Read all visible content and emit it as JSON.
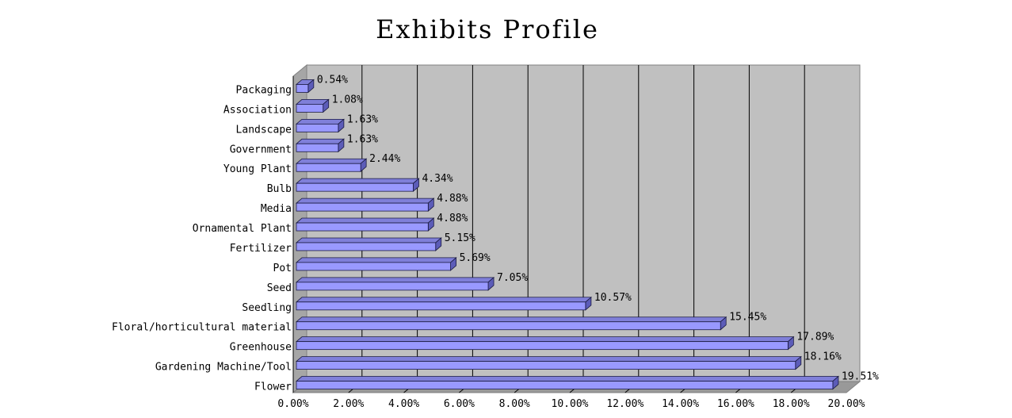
{
  "chart_data": {
    "type": "bar",
    "orientation": "horizontal",
    "title": "Exhibits Profile",
    "xlabel": "",
    "ylabel": "",
    "xlim": [
      0,
      20
    ],
    "x_ticks": [
      "0.00%",
      "2.00%",
      "4.00%",
      "6.00%",
      "8.00%",
      "10.00%",
      "12.00%",
      "14.00%",
      "16.00%",
      "18.00%",
      "20.00%"
    ],
    "grid": "vertical",
    "legend": "none",
    "style": "3d",
    "categories": [
      "Flower",
      "Gardening Machine/Tool",
      "Greenhouse",
      "Floral/horticultural material",
      "Seedling",
      "Seed",
      "Pot",
      "Fertilizer",
      "Ornamental Plant",
      "Media",
      "Bulb",
      "Young Plant",
      "Government",
      "Landscape",
      "Association",
      "Packaging"
    ],
    "values": [
      19.51,
      18.16,
      17.89,
      15.45,
      10.57,
      7.05,
      5.69,
      5.15,
      4.88,
      4.88,
      4.34,
      2.44,
      1.63,
      1.63,
      1.08,
      0.54
    ],
    "data_labels": [
      "19.51%",
      "18.16%",
      "17.89%",
      "15.45%",
      "10.57%",
      "7.05%",
      "5.69%",
      "5.15%",
      "4.88%",
      "4.88%",
      "4.34%",
      "2.44%",
      "1.63%",
      "1.63%",
      "1.08%",
      "0.54%"
    ],
    "colors": {
      "bar_front": "#9999ff",
      "bar_top": "#7f7fd9",
      "bar_side": "#5c5cb8",
      "bar_stroke": "#1a1a40",
      "plot_back": "#c0c0c0",
      "plot_side": "#a6a6a6",
      "plot_floor": "#999999",
      "grid": "#000000"
    }
  }
}
